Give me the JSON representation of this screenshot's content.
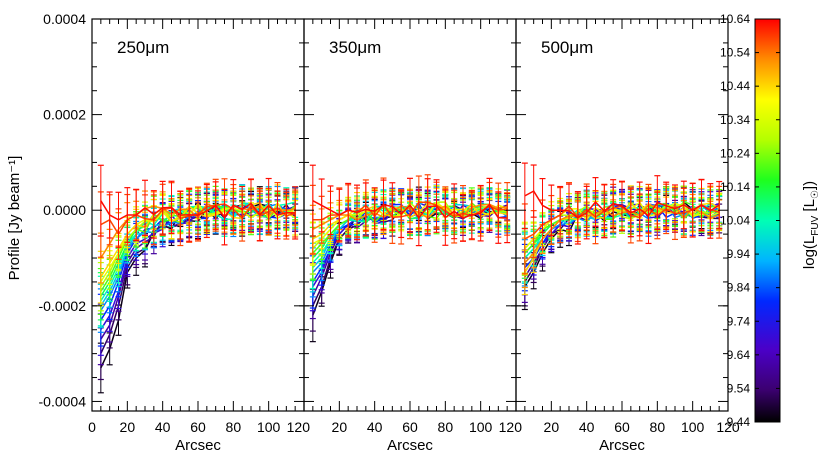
{
  "chart_data": {
    "type": "line",
    "ylabel": "Profile [Jy beam⁻¹]",
    "ylim": [
      -0.00042,
      0.0004
    ],
    "yticks": [
      0.0004,
      0.0002,
      0.0,
      -0.0002,
      -0.0004
    ],
    "ytick_labels": [
      "0.0004",
      "0.0002",
      "0.0000",
      "-0.0002",
      "-0.0004"
    ],
    "xlim": [
      0,
      120
    ],
    "xticks": [
      0,
      20,
      40,
      60,
      80,
      100,
      120
    ],
    "xtick_labels": [
      "0",
      "20",
      "40",
      "60",
      "80",
      "100",
      "120"
    ],
    "x": [
      5,
      10,
      15,
      20,
      25,
      30,
      35,
      40,
      45,
      50,
      55,
      60,
      65,
      70,
      75,
      80,
      85,
      90,
      95,
      100,
      105,
      110,
      115
    ],
    "colorbar": {
      "label": "log(L_FUV [L☉])",
      "label_parts": [
        "log(L",
        "FUV",
        " [L",
        "☉",
        "])"
      ],
      "range": [
        9.44,
        10.64
      ],
      "ticks": [
        "10.64",
        "10.54",
        "10.44",
        "10.34",
        "10.24",
        "10.14",
        "10.04",
        "9.94",
        "9.84",
        "9.74",
        "9.64",
        "9.54",
        "9.44"
      ]
    },
    "panels": [
      {
        "title": "250μm",
        "xlabel": "Arcsec",
        "show_xlabel_0": true,
        "series": [
          {
            "c": 9.46,
            "first": [
              -0.00033,
              -0.00029,
              -0.00023,
              -0.00013,
              -0.0001
            ]
          },
          {
            "c": 9.52,
            "first": [
              -0.0003,
              -0.00026,
              -0.0002,
              -0.00012,
              -9e-05
            ]
          },
          {
            "c": 9.6,
            "first": [
              -0.00027,
              -0.00024,
              -0.00018,
              -0.00011,
              -8e-05
            ]
          },
          {
            "c": 9.7,
            "first": [
              -0.00025,
              -0.00022,
              -0.00017,
              -0.0001,
              -7e-05
            ]
          },
          {
            "c": 9.8,
            "first": [
              -0.00023,
              -0.0002,
              -0.00015,
              -9e-05,
              -6e-05
            ]
          },
          {
            "c": 9.88,
            "first": [
              -0.00021,
              -0.00018,
              -0.00014,
              -8e-05,
              -6e-05
            ]
          },
          {
            "c": 9.96,
            "first": [
              -0.0002,
              -0.00017,
              -0.00013,
              -8e-05,
              -5e-05
            ]
          },
          {
            "c": 10.04,
            "first": [
              -0.00019,
              -0.00016,
              -0.00012,
              -7e-05,
              -5e-05
            ]
          },
          {
            "c": 10.12,
            "first": [
              -0.00018,
              -0.00015,
              -0.00011,
              -7e-05,
              -4e-05
            ]
          },
          {
            "c": 10.2,
            "first": [
              -0.00017,
              -0.00014,
              -0.0001,
              -6e-05,
              -4e-05
            ]
          },
          {
            "c": 10.28,
            "first": [
              -0.00016,
              -0.00013,
              -9e-05,
              -6e-05,
              -4e-05
            ]
          },
          {
            "c": 10.36,
            "first": [
              -0.00015,
              -0.00012,
              -9e-05,
              -5e-05,
              -3e-05
            ]
          },
          {
            "c": 10.44,
            "first": [
              -0.00014,
              -0.00011,
              -8e-05,
              -5e-05,
              -3e-05
            ]
          },
          {
            "c": 10.52,
            "first": [
              -0.0001,
              -7e-05,
              -4e-05,
              -2e-05,
              -1e-05
            ]
          },
          {
            "c": 10.58,
            "first": [
              -3e-05,
              -2e-05,
              -5e-05,
              -2e-05,
              -1e-05
            ]
          },
          {
            "c": 10.63,
            "first": [
              2e-05,
              -1e-05,
              -2e-05,
              -1e-05,
              -1e-05
            ]
          }
        ]
      },
      {
        "title": "350μm",
        "xlabel": "Arcsec",
        "show_xlabel_0": false,
        "series": [
          {
            "c": 9.46,
            "first": [
              -0.00022,
              -0.00017,
              -0.00011,
              -6e-05,
              -4e-05
            ]
          },
          {
            "c": 9.52,
            "first": [
              -0.0002,
              -0.00016,
              -0.0001,
              -6e-05,
              -4e-05
            ]
          },
          {
            "c": 9.6,
            "first": [
              -0.00018,
              -0.00014,
              -9e-05,
              -5e-05,
              -3e-05
            ]
          },
          {
            "c": 9.7,
            "first": [
              -0.00016,
              -0.00013,
              -8e-05,
              -5e-05,
              -3e-05
            ]
          },
          {
            "c": 9.8,
            "first": [
              -0.00015,
              -0.00012,
              -8e-05,
              -4e-05,
              -3e-05
            ]
          },
          {
            "c": 9.88,
            "first": [
              -0.00013,
              -0.00011,
              -7e-05,
              -4e-05,
              -2e-05
            ]
          },
          {
            "c": 9.96,
            "first": [
              -0.00012,
              -0.0001,
              -6e-05,
              -4e-05,
              -2e-05
            ]
          },
          {
            "c": 10.04,
            "first": [
              -0.00011,
              -9e-05,
              -6e-05,
              -3e-05,
              -2e-05
            ]
          },
          {
            "c": 10.12,
            "first": [
              -0.0001,
              -8e-05,
              -5e-05,
              -3e-05,
              -2e-05
            ]
          },
          {
            "c": 10.2,
            "first": [
              -9e-05,
              -7e-05,
              -5e-05,
              -3e-05,
              -2e-05
            ]
          },
          {
            "c": 10.28,
            "first": [
              -8e-05,
              -6e-05,
              -4e-05,
              -2e-05,
              -1e-05
            ]
          },
          {
            "c": 10.36,
            "first": [
              -7e-05,
              -6e-05,
              -4e-05,
              -2e-05,
              -1e-05
            ]
          },
          {
            "c": 10.44,
            "first": [
              -6e-05,
              -5e-05,
              -3e-05,
              -2e-05,
              -1e-05
            ]
          },
          {
            "c": 10.52,
            "first": [
              -4e-05,
              -3e-05,
              -2e-05,
              -1e-05,
              -1e-05
            ]
          },
          {
            "c": 10.58,
            "first": [
              -2e-05,
              -2e-05,
              -1e-05,
              -1e-05,
              0.0
            ]
          },
          {
            "c": 10.63,
            "first": [
              2e-05,
              1e-05,
              0.0,
              -1e-05,
              0.0
            ]
          }
        ]
      },
      {
        "title": "500μm",
        "xlabel": "Arcsec",
        "show_xlabel_0": false,
        "series": [
          {
            "c": 9.46,
            "first": [
              -0.00016,
              -0.00013,
              -9e-05,
              -6e-05,
              -4e-05
            ]
          },
          {
            "c": 9.52,
            "first": [
              -0.00015,
              -0.00012,
              -8e-05,
              -5e-05,
              -4e-05
            ]
          },
          {
            "c": 9.6,
            "first": [
              -0.00014,
              -0.00011,
              -8e-05,
              -5e-05,
              -3e-05
            ]
          },
          {
            "c": 9.7,
            "first": [
              -0.00013,
              -0.0001,
              -7e-05,
              -5e-05,
              -3e-05
            ]
          },
          {
            "c": 9.8,
            "first": [
              -0.00012,
              -0.0001,
              -7e-05,
              -4e-05,
              -3e-05
            ]
          },
          {
            "c": 9.88,
            "first": [
              -0.00011,
              -9e-05,
              -6e-05,
              -4e-05,
              -3e-05
            ]
          },
          {
            "c": 9.96,
            "first": [
              -0.0001,
              -8e-05,
              -6e-05,
              -4e-05,
              -2e-05
            ]
          },
          {
            "c": 10.04,
            "first": [
              -0.0001,
              -8e-05,
              -5e-05,
              -3e-05,
              -2e-05
            ]
          },
          {
            "c": 10.12,
            "first": [
              -9e-05,
              -7e-05,
              -5e-05,
              -3e-05,
              -2e-05
            ]
          },
          {
            "c": 10.2,
            "first": [
              -9e-05,
              -7e-05,
              -4e-05,
              -3e-05,
              -2e-05
            ]
          },
          {
            "c": 10.28,
            "first": [
              -8e-05,
              -6e-05,
              -4e-05,
              -2e-05,
              -1e-05
            ]
          },
          {
            "c": 10.36,
            "first": [
              -8e-05,
              -6e-05,
              -4e-05,
              -2e-05,
              -1e-05
            ]
          },
          {
            "c": 10.44,
            "first": [
              -0.00013,
              -0.0001,
              -6e-05,
              -4e-05,
              -2e-05
            ]
          },
          {
            "c": 10.52,
            "first": [
              -0.00011,
              -9e-05,
              -6e-05,
              -4e-05,
              -2e-05
            ]
          },
          {
            "c": 10.58,
            "first": [
              -6e-05,
              -5e-05,
              -3e-05,
              -2e-05,
              -1e-05
            ]
          },
          {
            "c": 10.63,
            "first": [
              3e-05,
              4e-05,
              1e-05,
              0.0,
              0.0
            ]
          }
        ]
      }
    ]
  }
}
